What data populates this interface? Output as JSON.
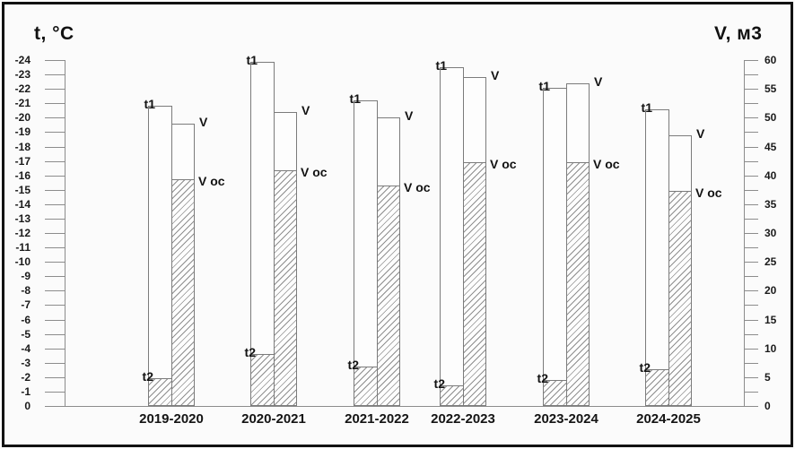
{
  "frame": {
    "background": "#fbfbfb",
    "border_color": "#121212"
  },
  "chart_data": {
    "type": "bar",
    "title": "",
    "categories": [
      "2019-2020",
      "2020-2021",
      "2021-2022",
      "2022-2023",
      "2023-2024",
      "2024-2025"
    ],
    "left_axis": {
      "title": "t, °C",
      "min": 0,
      "max": -24,
      "tick_step": 1,
      "tick_labels": [
        0,
        -1,
        -2,
        -3,
        -4,
        -5,
        -6,
        -7,
        -8,
        -9,
        -10,
        -11,
        -12,
        -13,
        -14,
        -15,
        -16,
        -17,
        -18,
        -19,
        -20,
        -21,
        -22,
        -23,
        -24
      ]
    },
    "right_axis": {
      "title": "V, м3",
      "min": 0,
      "max": 60,
      "minor_tick_step": 2.5,
      "label_step": 5,
      "tick_labels": [
        0,
        5,
        10,
        15,
        20,
        25,
        30,
        35,
        40,
        45,
        50,
        55,
        60
      ]
    },
    "series": [
      {
        "name": "t1",
        "axis": "left",
        "bar": "t",
        "role": "bar-top",
        "values": [
          -20.8,
          -23.9,
          -21.2,
          -23.5,
          -22.1,
          -20.6
        ]
      },
      {
        "name": "t2",
        "axis": "left",
        "bar": "t",
        "role": "hatch-boundary",
        "values": [
          -1.8,
          -3.5,
          -2.6,
          -1.3,
          -1.7,
          -2.4
        ]
      },
      {
        "name": "V",
        "axis": "right",
        "bar": "v",
        "role": "bar-top",
        "values": [
          49,
          51,
          50,
          57,
          56,
          47
        ]
      },
      {
        "name": "V oc",
        "axis": "right",
        "bar": "v",
        "role": "hatch-boundary",
        "values": [
          39,
          40.5,
          38,
          42,
          42,
          37
        ]
      }
    ],
    "legend": "none",
    "grid": false
  }
}
